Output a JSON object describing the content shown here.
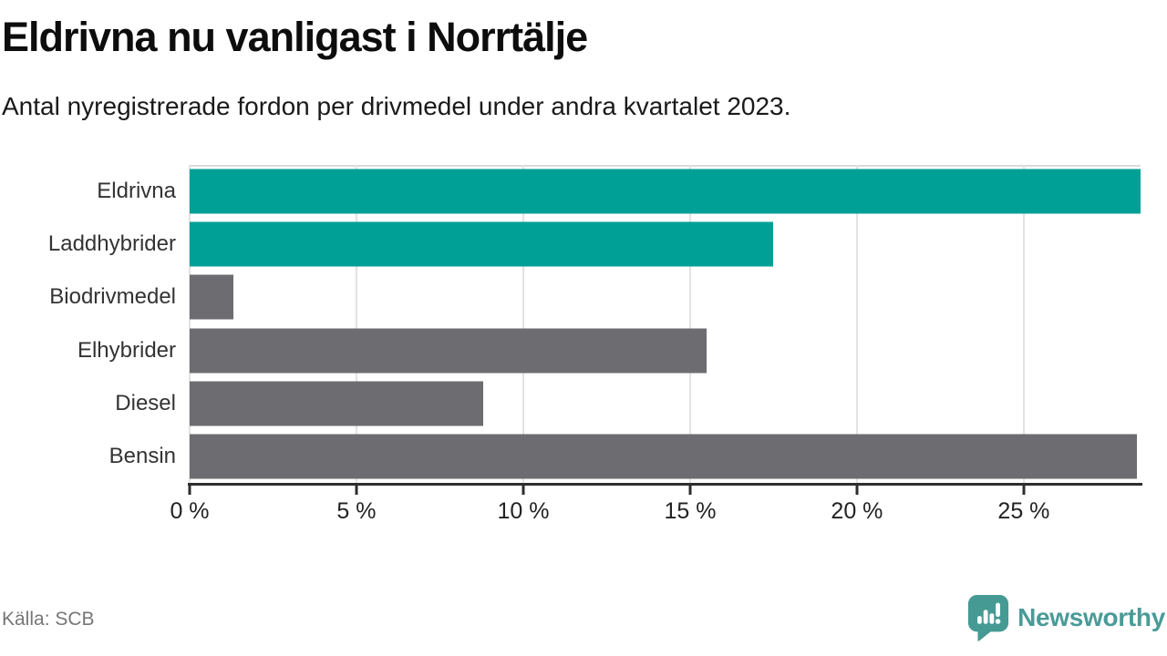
{
  "header": {
    "title": "Eldrivna nu vanligast i Norrtälje",
    "subtitle": "Antal nyregistrerade fordon per drivmedel under andra kvartalet 2023."
  },
  "chart_data": {
    "type": "bar",
    "orientation": "horizontal",
    "title": "Eldrivna nu vanligast i Norrtälje",
    "subtitle": "Antal nyregistrerade fordon per drivmedel under andra kvartalet 2023.",
    "categories": [
      "Eldrivna",
      "Laddhybrider",
      "Biodrivmedel",
      "Elhybrider",
      "Diesel",
      "Bensin"
    ],
    "values": [
      28.5,
      17.5,
      1.3,
      15.5,
      8.8,
      28.4
    ],
    "unit": "%",
    "series_colors": [
      "#00A096",
      "#00A096",
      "#6C6C71",
      "#6C6C71",
      "#6C6C71",
      "#6C6C71"
    ],
    "highlight_color": "#00A096",
    "default_color": "#6C6C71",
    "xlim": [
      0,
      28.5
    ],
    "x_ticks": [
      {
        "value": 0,
        "label": "0 %"
      },
      {
        "value": 5,
        "label": "5 %"
      },
      {
        "value": 10,
        "label": "10 %"
      },
      {
        "value": 15,
        "label": "15 %"
      },
      {
        "value": 20,
        "label": "20 %"
      },
      {
        "value": 25,
        "label": "25 %"
      }
    ],
    "grid": "vertical-on",
    "legend": "none"
  },
  "footer": {
    "source": "Källa: SCB",
    "brand": "Newsworthy",
    "brand_color": "#4A9B98",
    "logo_icon": "newsworthy-speech-bubble-bar-chart-icon"
  }
}
